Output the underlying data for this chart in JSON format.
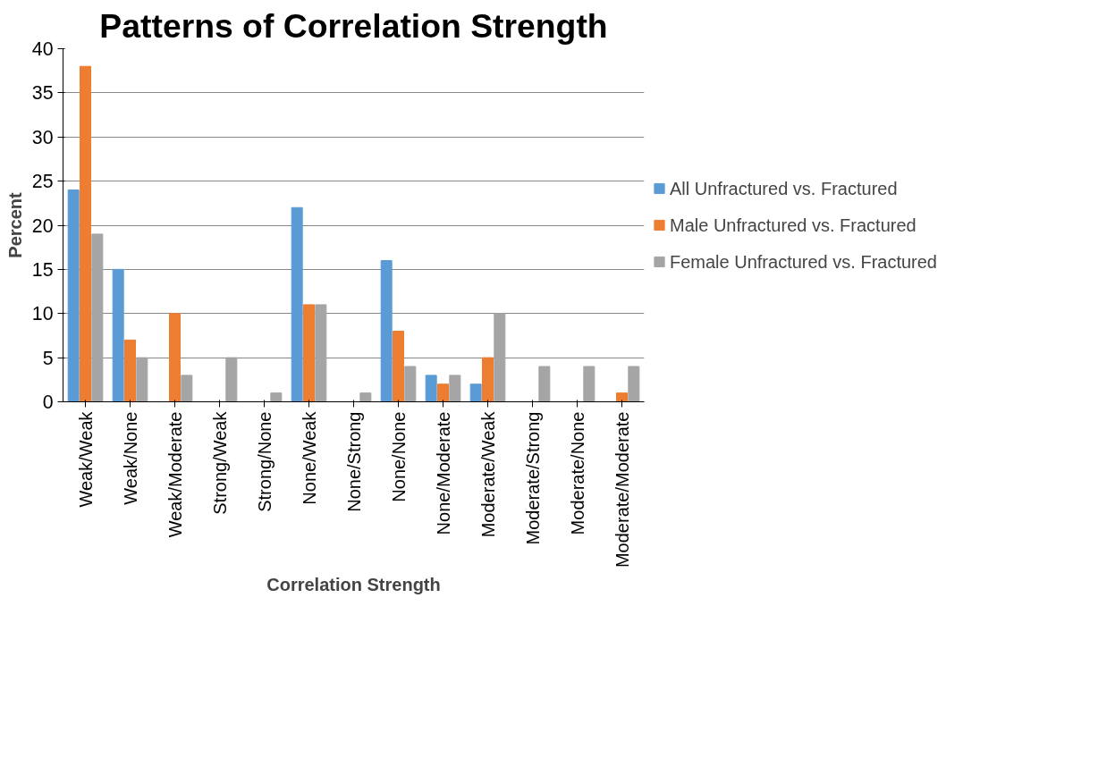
{
  "chart_data": {
    "type": "bar",
    "title": "Patterns of Correlation Strength",
    "xlabel": "Correlation Strength",
    "ylabel": "Percent",
    "categories": [
      "Weak/Weak",
      "Weak/None",
      "Weak/Moderate",
      "Strong/Weak",
      "Strong/None",
      "None/Weak",
      "None/Strong",
      "None/None",
      "None/Moderate",
      "Moderate/Weak",
      "Moderate/Strong",
      "Moderate/None",
      "Moderate/Moderate"
    ],
    "series": [
      {
        "name": "All Unfractured vs. Fractured",
        "color": "#5b9bd5",
        "values": [
          24,
          15,
          0,
          0,
          0,
          22,
          0,
          16,
          3,
          2,
          0,
          0,
          0
        ]
      },
      {
        "name": "Male Unfractured vs. Fractured",
        "color": "#ed7d31",
        "values": [
          38,
          7,
          10,
          0,
          0,
          11,
          0,
          8,
          2,
          5,
          0,
          0,
          1
        ]
      },
      {
        "name": "Female Unfractured vs. Fractured",
        "color": "#a5a5a5",
        "values": [
          19,
          5,
          3,
          5,
          1,
          11,
          1,
          4,
          3,
          10,
          4,
          4,
          4
        ]
      }
    ],
    "ylim": [
      0,
      40
    ],
    "yticks": [
      0,
      5,
      10,
      15,
      20,
      25,
      30,
      35,
      40
    ],
    "grid": "y",
    "legend": "right"
  }
}
